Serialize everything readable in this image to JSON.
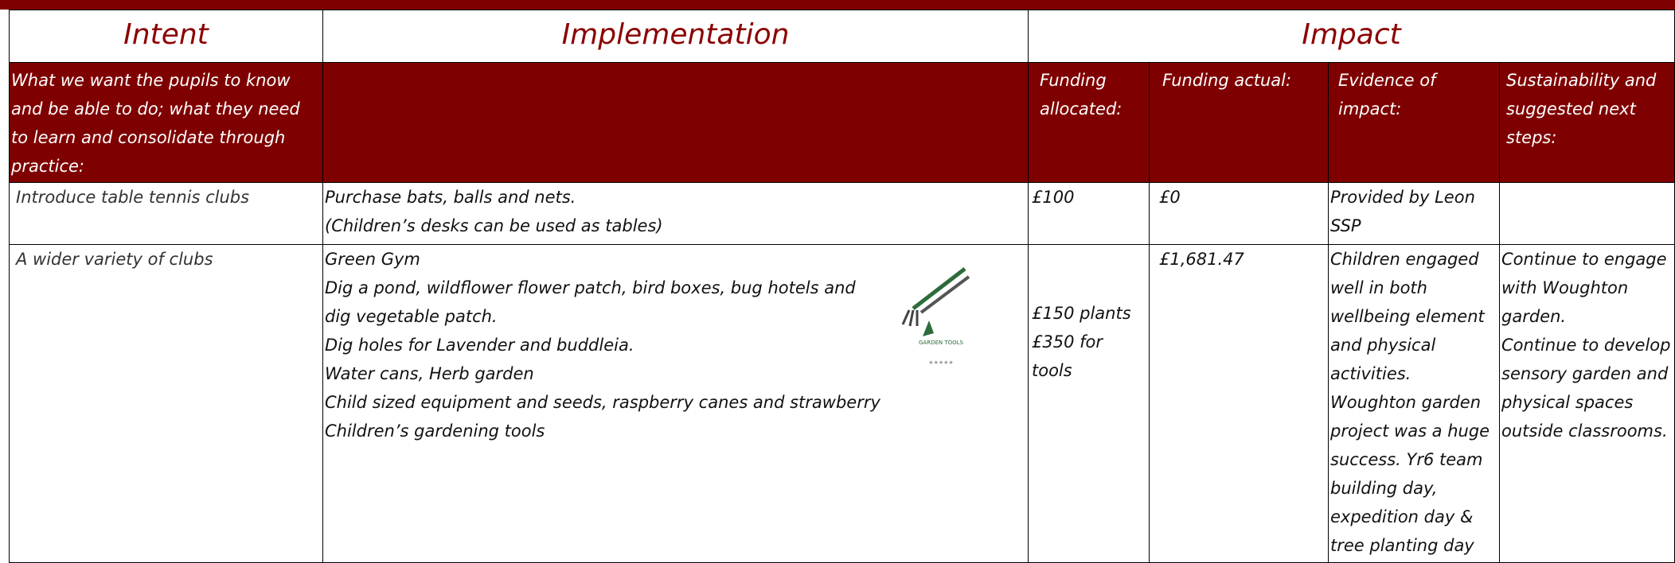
{
  "header": {
    "intent": "Intent",
    "implementation": "Implementation",
    "impact": "Impact"
  },
  "subheader": {
    "intent": "What we want the pupils to know and be able to do;  what they need to learn and consolidate through practice:",
    "funding_allocated": "Funding allocated:",
    "funding_actual": "Funding actual:",
    "evidence": "Evidence of impact:",
    "sustainability": "Sustainability and suggested next steps:"
  },
  "rows": [
    {
      "intent": "Introduce table tennis clubs",
      "implementation": [
        "Purchase bats, balls and nets.",
        "(Children’s desks can be used as tables)"
      ],
      "funding_allocated": [
        "£100"
      ],
      "funding_actual": "£0",
      "evidence": "Provided by Leon SSP",
      "sustainability": []
    },
    {
      "intent": "A wider variety of clubs",
      "implementation": [
        "Green Gym",
        "Dig a pond, wildflower flower patch, bird boxes, bug hotels and dig vegetable patch.",
        "Dig holes for Lavender and buddleia.",
        "Water cans, Herb garden",
        "Child sized equipment and seeds, raspberry canes and strawberry",
        "Children’s gardening tools"
      ],
      "funding_allocated": [
        "£150 plants",
        "£350 for tools"
      ],
      "funding_actual": "£1,681.47",
      "evidence": "Children engaged well in both wellbeing element and physical activities. Woughton garden project was a huge success. Yr6 team building day, expedition day & tree planting day",
      "sustainability": [
        "Continue to engage with Woughton garden.",
        "Continue to develop sensory garden and physical spaces outside classrooms."
      ]
    }
  ]
}
